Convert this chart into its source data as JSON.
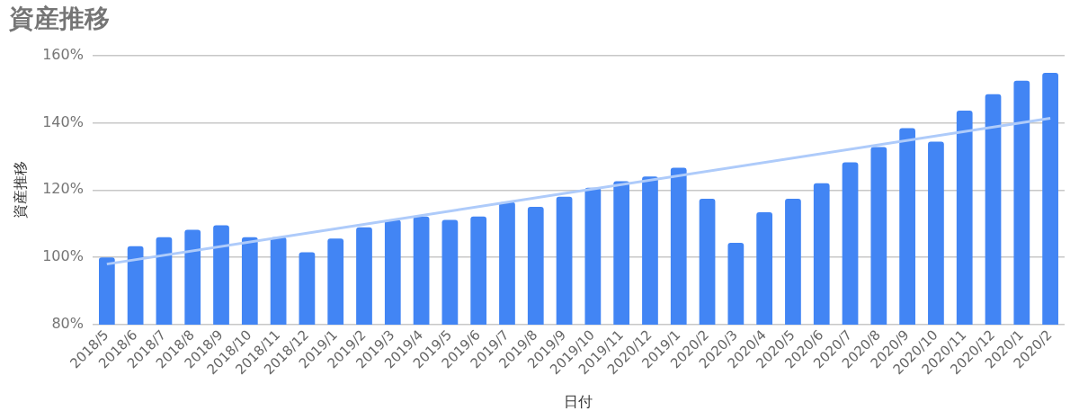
{
  "chart_data": {
    "type": "bar",
    "title": "資産推移",
    "xlabel": "日付",
    "ylabel": "資産推移",
    "categories": [
      "2018/5",
      "2018/6",
      "2018/7",
      "2018/8",
      "2018/9",
      "2018/10",
      "2018/11",
      "2018/12",
      "2019/1",
      "2019/2",
      "2019/3",
      "2019/4",
      "2019/5",
      "2019/6",
      "2019/7",
      "2019/8",
      "2019/9",
      "2019/10",
      "2019/11",
      "2020/12",
      "2019/1",
      "2020/2",
      "2020/3",
      "2020/4",
      "2020/5",
      "2020/6",
      "2020/7",
      "2020/8",
      "2020/9",
      "2020/10",
      "2020/11",
      "2020/12",
      "2020/1",
      "2020/2"
    ],
    "series": [
      {
        "color": "#4285f4",
        "values": [
          100,
          103.3,
          106,
          108.2,
          109.5,
          106,
          106,
          101.5,
          105.6,
          108.9,
          111.1,
          112.1,
          111.1,
          112.1,
          116.4,
          115,
          118,
          120.7,
          122.6,
          124,
          126.6,
          117.4,
          104.3,
          113.4,
          117.4,
          122,
          128.2,
          132.8,
          138.4,
          134.4,
          143.6,
          148.5,
          152.5,
          154.8
        ]
      },
      {
        "type": "line",
        "color": "#aecbfa",
        "values": [
          98,
          null,
          null,
          null,
          null,
          null,
          null,
          null,
          null,
          null,
          null,
          null,
          null,
          null,
          null,
          null,
          null,
          null,
          null,
          null,
          null,
          null,
          null,
          null,
          null,
          null,
          null,
          null,
          null,
          null,
          null,
          null,
          null,
          141.3
        ]
      }
    ],
    "ylim": [
      80,
      160
    ],
    "yticks": [
      {
        "value": 80,
        "label": "80%"
      },
      {
        "value": 100,
        "label": "100%"
      },
      {
        "value": 120,
        "label": "120%"
      },
      {
        "value": 140,
        "label": "140%"
      },
      {
        "value": 160,
        "label": "160%"
      }
    ],
    "grid": "y",
    "legend": false
  }
}
